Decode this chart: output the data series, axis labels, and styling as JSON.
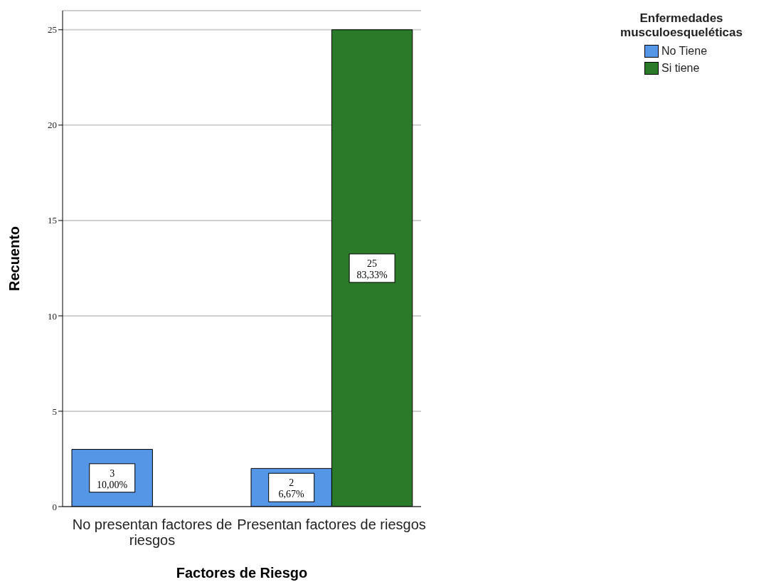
{
  "chart_data": {
    "type": "bar",
    "xlabel": "Factores de Riesgo",
    "ylabel": "Recuento",
    "legend_title": "Enfermedades musculoesqueléticas",
    "categories": [
      "No presentan factores de riesgos",
      "Presentan factores de riesgos"
    ],
    "series": [
      {
        "name": "No Tiene",
        "color": "#5596e6",
        "values": [
          3,
          2
        ],
        "value_labels": [
          "3\n10,00%",
          "2\n6,67%"
        ]
      },
      {
        "name": "Si tiene",
        "color": "#2a7a2a",
        "values": [
          null,
          25
        ],
        "value_labels": [
          null,
          "25\n83,33%"
        ]
      }
    ],
    "ylim": [
      0,
      26
    ],
    "yticks": [
      0,
      5,
      10,
      15,
      20,
      25
    ],
    "grid": "y",
    "legend": "top right"
  }
}
